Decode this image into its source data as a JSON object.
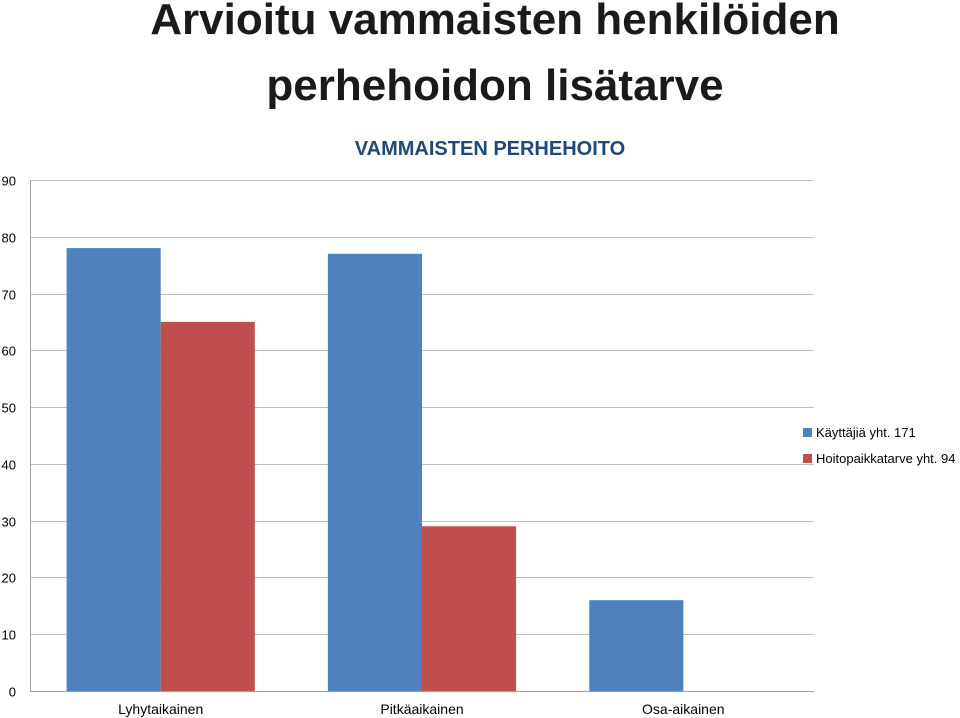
{
  "slide": {
    "title_line1": "Arvioitu vammaisten henkilöiden",
    "title_line2": "perhehoidon lisätarve"
  },
  "chart_data": {
    "type": "bar",
    "title": "VAMMAISTEN PERHEHOITO",
    "categories": [
      "Lyhytaikainen",
      "Pitkäaikainen",
      "Osa-aikainen"
    ],
    "series": [
      {
        "name": "Käyttäjiä yht. 171",
        "values": [
          78,
          77,
          16
        ],
        "color": "#4f81bd"
      },
      {
        "name": "Hoitopaikkatarve yht. 94",
        "values": [
          65,
          29,
          0
        ],
        "color": "#c0504d"
      }
    ],
    "xlabel": "",
    "ylabel": "",
    "ylim": [
      0,
      90
    ],
    "yticks": [
      0,
      10,
      20,
      30,
      40,
      50,
      60,
      70,
      80,
      90
    ],
    "grid": true,
    "legend_position": "right"
  }
}
